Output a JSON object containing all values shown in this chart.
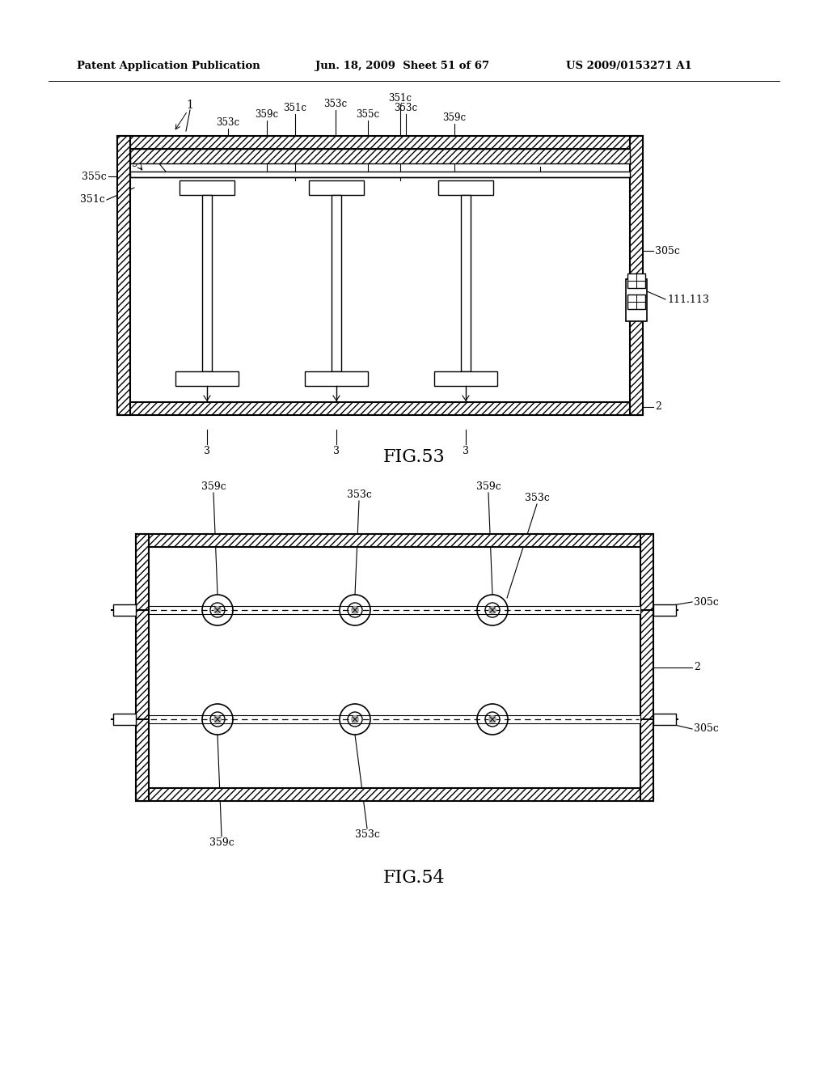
{
  "bg_color": "#ffffff",
  "header_text1": "Patent Application Publication",
  "header_text2": "Jun. 18, 2009  Sheet 51 of 67",
  "header_text3": "US 2009/0153271 A1",
  "fig53_label": "FIG.53",
  "fig54_label": "FIG.54"
}
